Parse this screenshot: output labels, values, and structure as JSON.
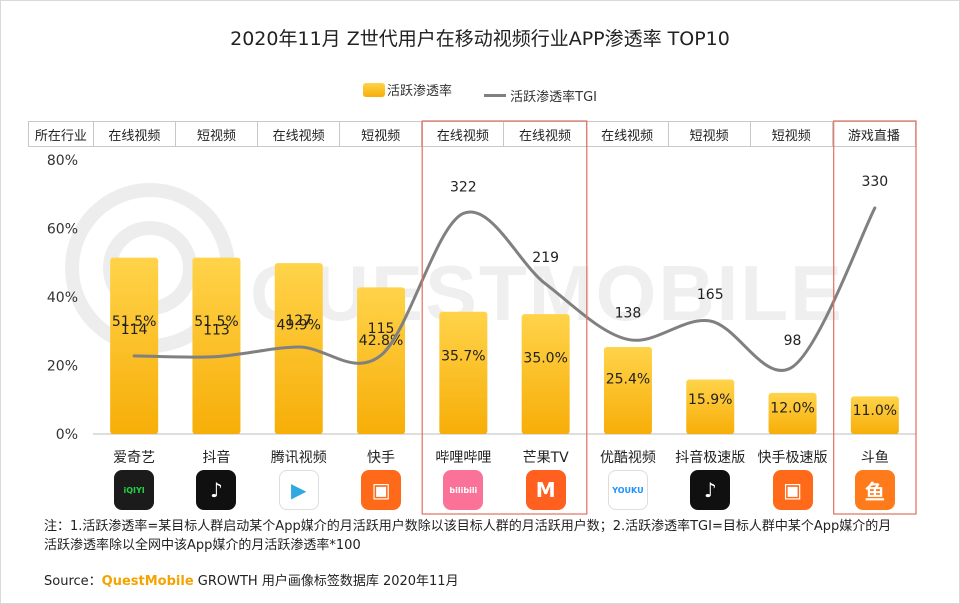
{
  "watermark": "QUESTMOBILE",
  "chart_data": {
    "type": "bar",
    "title": "2020年11月 Z世代用户在移动视频行业APP渗透率 TOP10",
    "legend": [
      "活跃渗透率",
      "活跃渗透率TGI"
    ],
    "industry_header": "所在行业",
    "industries": [
      "在线视频",
      "短视频",
      "在线视频",
      "短视频",
      "在线视频",
      "在线视频",
      "在线视频",
      "短视频",
      "短视频",
      "游戏直播"
    ],
    "categories": [
      "爱奇艺",
      "抖音",
      "腾讯视频",
      "快手",
      "哔哩哔哩",
      "芒果TV",
      "优酷视频",
      "抖音极速版",
      "快手极速版",
      "斗鱼"
    ],
    "y_ticks": [
      "0%",
      "20%",
      "40%",
      "60%",
      "80%"
    ],
    "ylim": [
      0,
      80
    ],
    "series": [
      {
        "name": "活跃渗透率",
        "type": "bar",
        "values": [
          51.5,
          51.5,
          49.9,
          42.8,
          35.7,
          35.0,
          25.4,
          15.9,
          12.0,
          11.0
        ],
        "labels": [
          "51.5%",
          "51.5%",
          "49.9%",
          "42.8%",
          "35.7%",
          "35.0%",
          "25.4%",
          "15.9%",
          "12.0%",
          "11.0%"
        ]
      },
      {
        "name": "活跃渗透率TGI",
        "type": "line",
        "values": [
          114,
          113,
          127,
          115,
          322,
          219,
          138,
          165,
          98,
          330
        ],
        "labels": [
          "114",
          "113",
          "127",
          "115",
          "322",
          "219",
          "138",
          "165",
          "98",
          "330"
        ]
      }
    ],
    "tgi_range": [
      0,
      400
    ],
    "highlight_groups": [
      [
        4,
        5
      ],
      [
        9
      ]
    ]
  },
  "icons": [
    {
      "name": "iqiyi-icon",
      "text": "iQIYI",
      "bg": "#1b1b1b",
      "fg": "#24d144"
    },
    {
      "name": "douyin-icon",
      "text": "♪",
      "bg": "#101010",
      "fg": "#ffffff"
    },
    {
      "name": "tencent-video-icon",
      "text": "▶",
      "bg": "#ffffff",
      "fg": "#2fa9e0"
    },
    {
      "name": "kuaishou-icon",
      "text": "▣",
      "bg": "#ff6a1a",
      "fg": "#ffffff"
    },
    {
      "name": "bilibili-icon",
      "text": "bilibili",
      "bg": "#fb7299",
      "fg": "#ffffff"
    },
    {
      "name": "mango-tv-icon",
      "text": "M",
      "bg": "#ff5f1f",
      "fg": "#ffffff"
    },
    {
      "name": "youku-icon",
      "text": "YOUKU",
      "bg": "#ffffff",
      "fg": "#1e90ff"
    },
    {
      "name": "douyin-lite-icon",
      "text": "♪",
      "bg": "#101010",
      "fg": "#ffffff"
    },
    {
      "name": "kuaishou-lite-icon",
      "text": "▣",
      "bg": "#ff6a1a",
      "fg": "#ffffff"
    },
    {
      "name": "douyu-icon",
      "text": "鱼",
      "bg": "#ff7a1a",
      "fg": "#ffffff"
    }
  ],
  "note": "注：1.活跃渗透率=某目标人群启动某个App媒介的月活跃用户数除以该目标人群的月活跃用户数；2.活跃渗透率TGI=目标人群中某个App媒介的月活跃渗透率除以全网中该App媒介的月活跃渗透率*100",
  "source": {
    "prefix": "Source：",
    "brand": "QuestMobile",
    "text": " GROWTH 用户画像标签数据库 2020年11月"
  },
  "colors": {
    "bar_top": "#ffd34a",
    "bar_bottom": "#f7ae08",
    "line": "#808080",
    "highlight": "#e07060",
    "grid": "#e0e0e0"
  }
}
